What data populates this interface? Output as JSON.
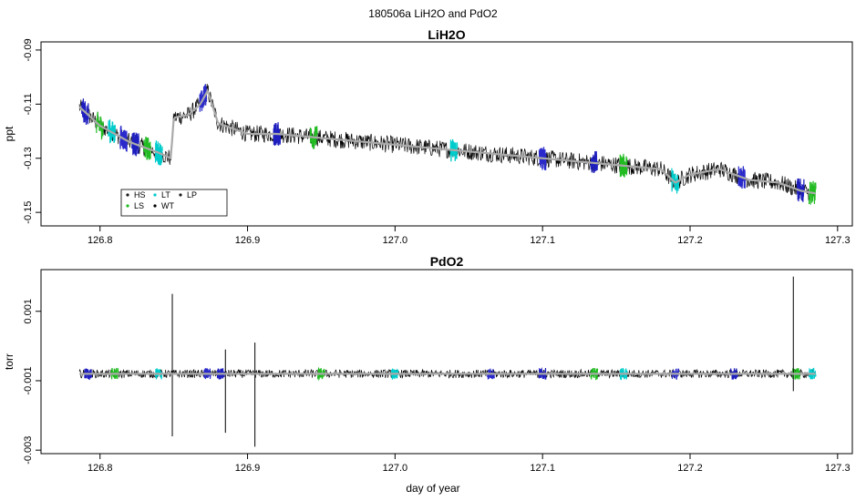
{
  "figure_title": "180506a   LiH2O and PdO2",
  "chart_data": [
    {
      "type": "line",
      "title": "LiH2O",
      "xlabel": "",
      "ylabel": "ppt",
      "xlim": [
        126.76,
        127.31
      ],
      "ylim": [
        -0.155,
        -0.087
      ],
      "x_ticks": [
        126.8,
        126.9,
        127.0,
        127.1,
        127.2,
        127.3
      ],
      "x_tick_labels": [
        "126.8",
        "126.9",
        "127.0",
        "127.1",
        "127.2",
        "127.3"
      ],
      "y_ticks": [
        -0.15,
        -0.13,
        -0.11,
        -0.09
      ],
      "y_tick_labels": [
        "-0.15",
        "-0.13",
        "-0.11",
        "-0.09"
      ],
      "grid": false,
      "legend_position": "bottom-left",
      "legend": [
        {
          "label": "HS",
          "color": "#1a1a1a"
        },
        {
          "label": "LS",
          "color": "#22bb22"
        },
        {
          "label": "LT",
          "color": "#00cccc"
        },
        {
          "label": "WT",
          "color": "#000000"
        },
        {
          "label": "LP",
          "color": "#1a1a1a"
        }
      ],
      "series": [
        {
          "name": "raw",
          "color": "#000000",
          "x": [
            126.786,
            126.8,
            126.81,
            126.82,
            126.83,
            126.84,
            126.848,
            126.85,
            126.86,
            126.868,
            126.873,
            126.88,
            126.89,
            126.9,
            126.92,
            126.94,
            126.96,
            126.98,
            127.0,
            127.02,
            127.04,
            127.06,
            127.08,
            127.1,
            127.12,
            127.14,
            127.16,
            127.18,
            127.19,
            127.2,
            127.22,
            127.24,
            127.26,
            127.275,
            127.285
          ],
          "y": [
            -0.111,
            -0.118,
            -0.121,
            -0.124,
            -0.126,
            -0.128,
            -0.13,
            -0.115,
            -0.114,
            -0.11,
            -0.105,
            -0.117,
            -0.119,
            -0.121,
            -0.121,
            -0.122,
            -0.123,
            -0.124,
            -0.125,
            -0.126,
            -0.127,
            -0.128,
            -0.129,
            -0.13,
            -0.131,
            -0.132,
            -0.133,
            -0.134,
            -0.139,
            -0.136,
            -0.134,
            -0.138,
            -0.139,
            -0.142,
            -0.143
          ]
        },
        {
          "name": "smoothed",
          "color": "#aaaaaa",
          "x": [
            126.786,
            126.8,
            126.81,
            126.82,
            126.83,
            126.84,
            126.848,
            126.85,
            126.86,
            126.868,
            126.873,
            126.88,
            126.89,
            126.9,
            126.92,
            126.94,
            126.96,
            126.98,
            127.0,
            127.02,
            127.04,
            127.06,
            127.08,
            127.1,
            127.12,
            127.14,
            127.16,
            127.18,
            127.19,
            127.2,
            127.22,
            127.24,
            127.26,
            127.275,
            127.285
          ],
          "y": [
            -0.111,
            -0.118,
            -0.121,
            -0.124,
            -0.126,
            -0.128,
            -0.13,
            -0.115,
            -0.114,
            -0.11,
            -0.105,
            -0.117,
            -0.119,
            -0.121,
            -0.121,
            -0.122,
            -0.123,
            -0.124,
            -0.125,
            -0.126,
            -0.127,
            -0.128,
            -0.129,
            -0.13,
            -0.131,
            -0.132,
            -0.133,
            -0.134,
            -0.139,
            -0.136,
            -0.134,
            -0.138,
            -0.139,
            -0.142,
            -0.143
          ]
        }
      ]
    },
    {
      "type": "line",
      "title": "PdO2",
      "xlabel": "day of year",
      "ylabel": "torr",
      "xlim": [
        126.76,
        127.31
      ],
      "ylim": [
        -0.0031,
        0.0022
      ],
      "x_ticks": [
        126.8,
        126.9,
        127.0,
        127.1,
        127.2,
        127.3
      ],
      "x_tick_labels": [
        "126.8",
        "126.9",
        "127.0",
        "127.1",
        "127.2",
        "127.3"
      ],
      "y_ticks": [
        -0.003,
        -0.001,
        0.001
      ],
      "y_tick_labels": [
        "-0.003",
        "-0.001",
        "0.001"
      ],
      "grid": false,
      "series": [
        {
          "name": "raw",
          "color": "#000000",
          "x": [
            126.786,
            126.82,
            126.84,
            126.85,
            126.86,
            126.88,
            126.9,
            126.92,
            126.95,
            127.0,
            127.05,
            127.1,
            127.15,
            127.2,
            127.25,
            127.27,
            127.285
          ],
          "y": [
            -0.0008,
            -0.0008,
            -0.0008,
            -0.0008,
            -0.0008,
            -0.0008,
            -0.0008,
            -0.0008,
            -0.0008,
            -0.0008,
            -0.0008,
            -0.0008,
            -0.0008,
            -0.0008,
            -0.0008,
            -0.0008,
            -0.0008
          ]
        },
        {
          "name": "smoothed",
          "color": "#aaaaaa",
          "x": [
            126.786,
            126.82,
            126.84,
            126.85,
            126.86,
            126.88,
            126.9,
            126.92,
            126.95,
            127.0,
            127.05,
            127.1,
            127.15,
            127.2,
            127.25,
            127.27,
            127.285
          ],
          "y": [
            -0.0008,
            -0.0008,
            -0.0008,
            -0.0008,
            -0.0008,
            -0.0008,
            -0.0008,
            -0.0008,
            -0.0008,
            -0.0008,
            -0.0008,
            -0.0008,
            -0.0008,
            -0.0008,
            -0.0008,
            -0.0008,
            -0.0008
          ]
        }
      ],
      "spikes": [
        {
          "x": 126.849,
          "high": 0.0015,
          "low": -0.0026
        },
        {
          "x": 126.885,
          "high": -0.0001,
          "low": -0.0025
        },
        {
          "x": 126.905,
          "high": 0.0001,
          "low": -0.0029
        },
        {
          "x": 127.27,
          "high": 0.002,
          "low": -0.0013
        }
      ]
    }
  ]
}
